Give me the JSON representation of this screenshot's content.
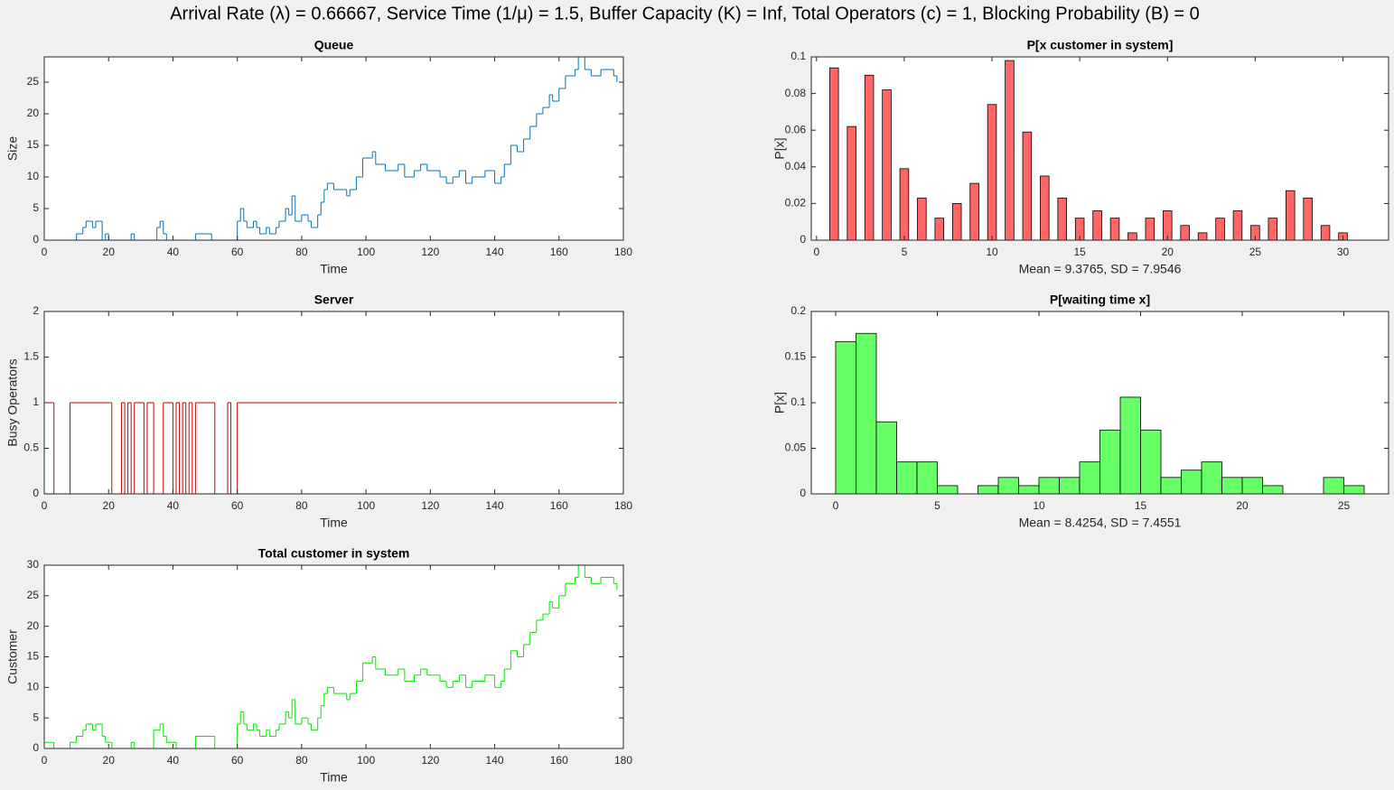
{
  "title": "Arrival Rate (λ) = 0.66667, Service Time (1/μ) = 1.5, Buffer Capacity (K) = Inf, Total Operators (c) = 1, Blocking Probability (B) = 0",
  "chart_data": [
    {
      "type": "line",
      "step": true,
      "title": "Queue",
      "xlabel": "Time",
      "ylabel": "Size",
      "xlim": [
        0,
        180
      ],
      "xticks": [
        0,
        20,
        40,
        60,
        80,
        100,
        120,
        140,
        160,
        180
      ],
      "ylim": [
        0,
        29
      ],
      "yticks": [
        0,
        5,
        10,
        15,
        20,
        25
      ],
      "series": [
        {
          "color": "#0072bd",
          "x": [
            0,
            10,
            12,
            13,
            15,
            16,
            18,
            19,
            20,
            27,
            28,
            35,
            36,
            37,
            38,
            47,
            52,
            60,
            61,
            62,
            63,
            65,
            66,
            67,
            69,
            70,
            72,
            73,
            75,
            76,
            77,
            78,
            80,
            82,
            83,
            85,
            86,
            87,
            88,
            90,
            94,
            95,
            97,
            99,
            102,
            103,
            106,
            110,
            112,
            115,
            117,
            119,
            123,
            125,
            127,
            129,
            131,
            133,
            137,
            140,
            142,
            143,
            145,
            147,
            149,
            151,
            153,
            155,
            157,
            158,
            160,
            162,
            165,
            166,
            168,
            170,
            173,
            177,
            178
          ],
          "values": [
            0,
            1,
            2,
            3,
            2,
            3,
            0,
            1,
            0,
            1,
            0,
            2,
            3,
            1,
            0,
            1,
            0,
            3,
            5,
            3,
            2,
            3,
            2,
            1,
            2,
            1,
            2,
            3,
            5,
            4,
            7,
            3,
            4,
            3,
            2,
            4,
            6,
            8,
            9,
            8,
            7,
            8,
            10,
            13,
            14,
            12,
            11,
            12,
            10,
            11,
            12,
            11,
            10,
            9,
            10,
            11,
            9,
            10,
            11,
            9,
            10,
            12,
            15,
            14,
            16,
            18,
            20,
            21,
            23,
            22,
            24,
            26,
            27,
            29,
            27,
            26,
            27,
            26,
            25
          ]
        }
      ]
    },
    {
      "type": "line",
      "step": true,
      "title": "Server",
      "xlabel": "Time",
      "ylabel": "Busy Operators",
      "xlim": [
        0,
        180
      ],
      "xticks": [
        0,
        20,
        40,
        60,
        80,
        100,
        120,
        140,
        160,
        180
      ],
      "ylim": [
        0,
        2
      ],
      "yticks": [
        0,
        0.5,
        1,
        1.5,
        2
      ],
      "series": [
        {
          "color": "#cc0000",
          "x": [
            0,
            3,
            8,
            21,
            24,
            25,
            26,
            27,
            28,
            31,
            32,
            34,
            37,
            40,
            41,
            42,
            43,
            44,
            45,
            46,
            47,
            53,
            57,
            58,
            60,
            178
          ],
          "values": [
            1,
            0,
            1,
            0,
            1,
            0,
            1,
            0,
            1,
            0,
            1,
            0,
            1,
            0,
            1,
            0,
            1,
            0,
            1,
            0,
            1,
            0,
            1,
            0,
            1,
            1
          ]
        }
      ]
    },
    {
      "type": "line",
      "step": true,
      "title": "Total customer in system",
      "xlabel": "Time",
      "ylabel": "Customer",
      "xlim": [
        0,
        180
      ],
      "xticks": [
        0,
        20,
        40,
        60,
        80,
        100,
        120,
        140,
        160,
        180
      ],
      "ylim": [
        0,
        30
      ],
      "yticks": [
        0,
        5,
        10,
        15,
        20,
        25,
        30
      ],
      "series": [
        {
          "color": "#00e600",
          "x": [
            0,
            3,
            8,
            10,
            12,
            13,
            15,
            16,
            18,
            19,
            21,
            27,
            28,
            34,
            36,
            37,
            38,
            41,
            47,
            53,
            60,
            61,
            62,
            63,
            65,
            66,
            67,
            69,
            70,
            72,
            73,
            75,
            76,
            77,
            78,
            80,
            82,
            83,
            85,
            86,
            87,
            88,
            90,
            94,
            95,
            97,
            99,
            102,
            103,
            106,
            110,
            112,
            115,
            117,
            119,
            123,
            125,
            127,
            129,
            131,
            133,
            137,
            140,
            142,
            143,
            145,
            147,
            149,
            151,
            153,
            155,
            157,
            158,
            160,
            162,
            165,
            166,
            168,
            170,
            173,
            177,
            178
          ],
          "values": [
            1,
            0,
            1,
            2,
            3,
            4,
            3,
            4,
            2,
            1,
            0,
            1,
            0,
            3,
            4,
            2,
            1,
            0,
            2,
            0,
            4,
            6,
            4,
            3,
            4,
            3,
            2,
            3,
            2,
            3,
            4,
            6,
            5,
            8,
            4,
            5,
            4,
            3,
            5,
            7,
            9,
            10,
            9,
            8,
            9,
            11,
            14,
            15,
            13,
            12,
            13,
            11,
            12,
            13,
            12,
            11,
            10,
            11,
            12,
            10,
            11,
            12,
            10,
            11,
            13,
            16,
            15,
            17,
            19,
            21,
            22,
            24,
            23,
            25,
            27,
            28,
            30,
            28,
            27,
            28,
            27,
            26
          ]
        }
      ]
    },
    {
      "type": "bar",
      "title": "P[x customer in system]",
      "xlabel": "Mean = 9.3765, SD = 7.9546",
      "ylabel": "P[x]",
      "xlim": [
        -0.3,
        32.6
      ],
      "xticks": [
        0,
        5,
        10,
        15,
        20,
        25,
        30
      ],
      "ylim": [
        0,
        0.1
      ],
      "yticks": [
        0,
        0.02,
        0.04,
        0.06,
        0.08,
        0.1
      ],
      "color": "#ff6666",
      "x": [
        1,
        2,
        3,
        4,
        5,
        6,
        7,
        8,
        9,
        10,
        11,
        12,
        13,
        14,
        15,
        16,
        17,
        18,
        19,
        20,
        21,
        22,
        23,
        24,
        25,
        26,
        27,
        28,
        29,
        30
      ],
      "values": [
        0.094,
        0.062,
        0.09,
        0.082,
        0.039,
        0.023,
        0.012,
        0.02,
        0.031,
        0.074,
        0.098,
        0.059,
        0.035,
        0.023,
        0.012,
        0.016,
        0.012,
        0.004,
        0.012,
        0.016,
        0.008,
        0.004,
        0.012,
        0.016,
        0.008,
        0.012,
        0.027,
        0.023,
        0.008,
        0.004
      ]
    },
    {
      "type": "histogram",
      "title": "P[waiting time x]",
      "xlabel": "Mean = 8.4254, SD = 7.4551",
      "ylabel": "P[x]",
      "xlim": [
        -1.2,
        27.2
      ],
      "xticks": [
        0,
        5,
        10,
        15,
        20,
        25
      ],
      "ylim": [
        0,
        0.2
      ],
      "yticks": [
        0,
        0.05,
        0.1,
        0.15,
        0.2
      ],
      "color": "#66ff66",
      "bins": [
        0,
        1,
        2,
        3,
        4,
        5,
        6,
        7,
        8,
        9,
        10,
        11,
        12,
        13,
        14,
        15,
        16,
        17,
        18,
        19,
        20,
        21,
        22,
        23,
        24,
        25,
        26
      ],
      "values": [
        0.167,
        0.176,
        0.079,
        0.035,
        0.035,
        0.009,
        0,
        0.009,
        0.018,
        0.009,
        0.018,
        0.018,
        0.035,
        0.07,
        0.106,
        0.07,
        0.018,
        0.026,
        0.035,
        0.018,
        0.018,
        0.009,
        0,
        0,
        0.018,
        0.009
      ]
    }
  ]
}
